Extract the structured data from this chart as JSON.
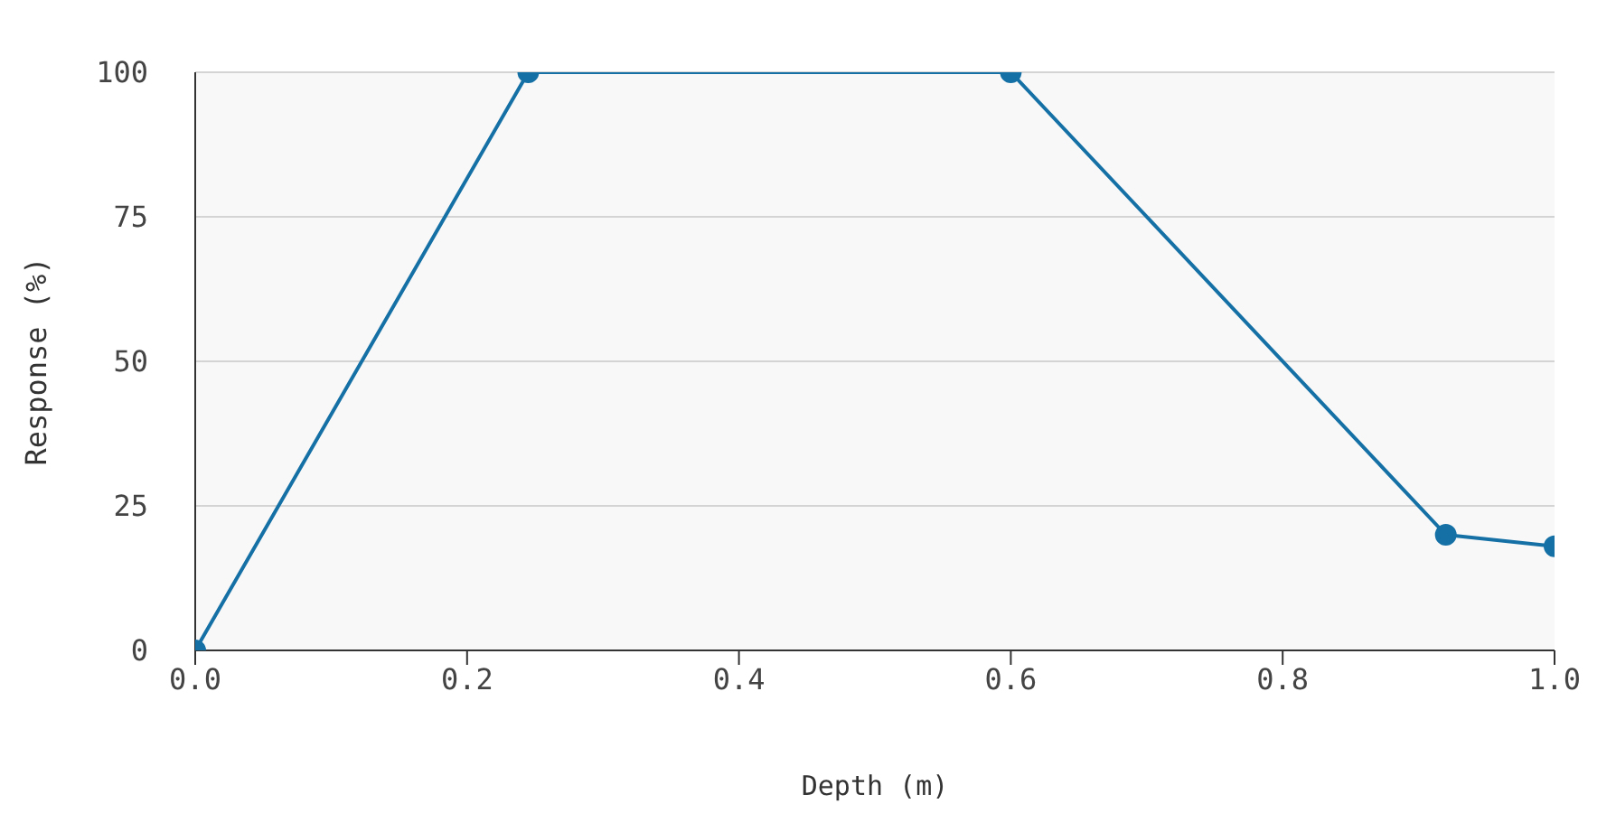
{
  "chart_data": {
    "type": "line",
    "xlabel": "Depth (m)",
    "ylabel": "Response (%)",
    "x": [
      0,
      0.245,
      0.6,
      0.92,
      1.0
    ],
    "series": [
      {
        "color": "#1570a6",
        "values": [
          0,
          100,
          100,
          20,
          18
        ]
      }
    ],
    "xlim": [
      0,
      1
    ],
    "xticks": [
      {
        "value": 0,
        "label": "0.0"
      },
      {
        "value": 0.2,
        "label": "0.2"
      },
      {
        "value": 0.4,
        "label": "0.4"
      },
      {
        "value": 0.6,
        "label": "0.6"
      },
      {
        "value": 0.8,
        "label": "0.8"
      },
      {
        "value": 1,
        "label": "1.0"
      }
    ],
    "ylim": [
      0,
      100
    ],
    "yticks": [
      0,
      25,
      50,
      75,
      100
    ],
    "grid": "y",
    "marker": "circle",
    "line_style": "solid",
    "legend": false
  }
}
